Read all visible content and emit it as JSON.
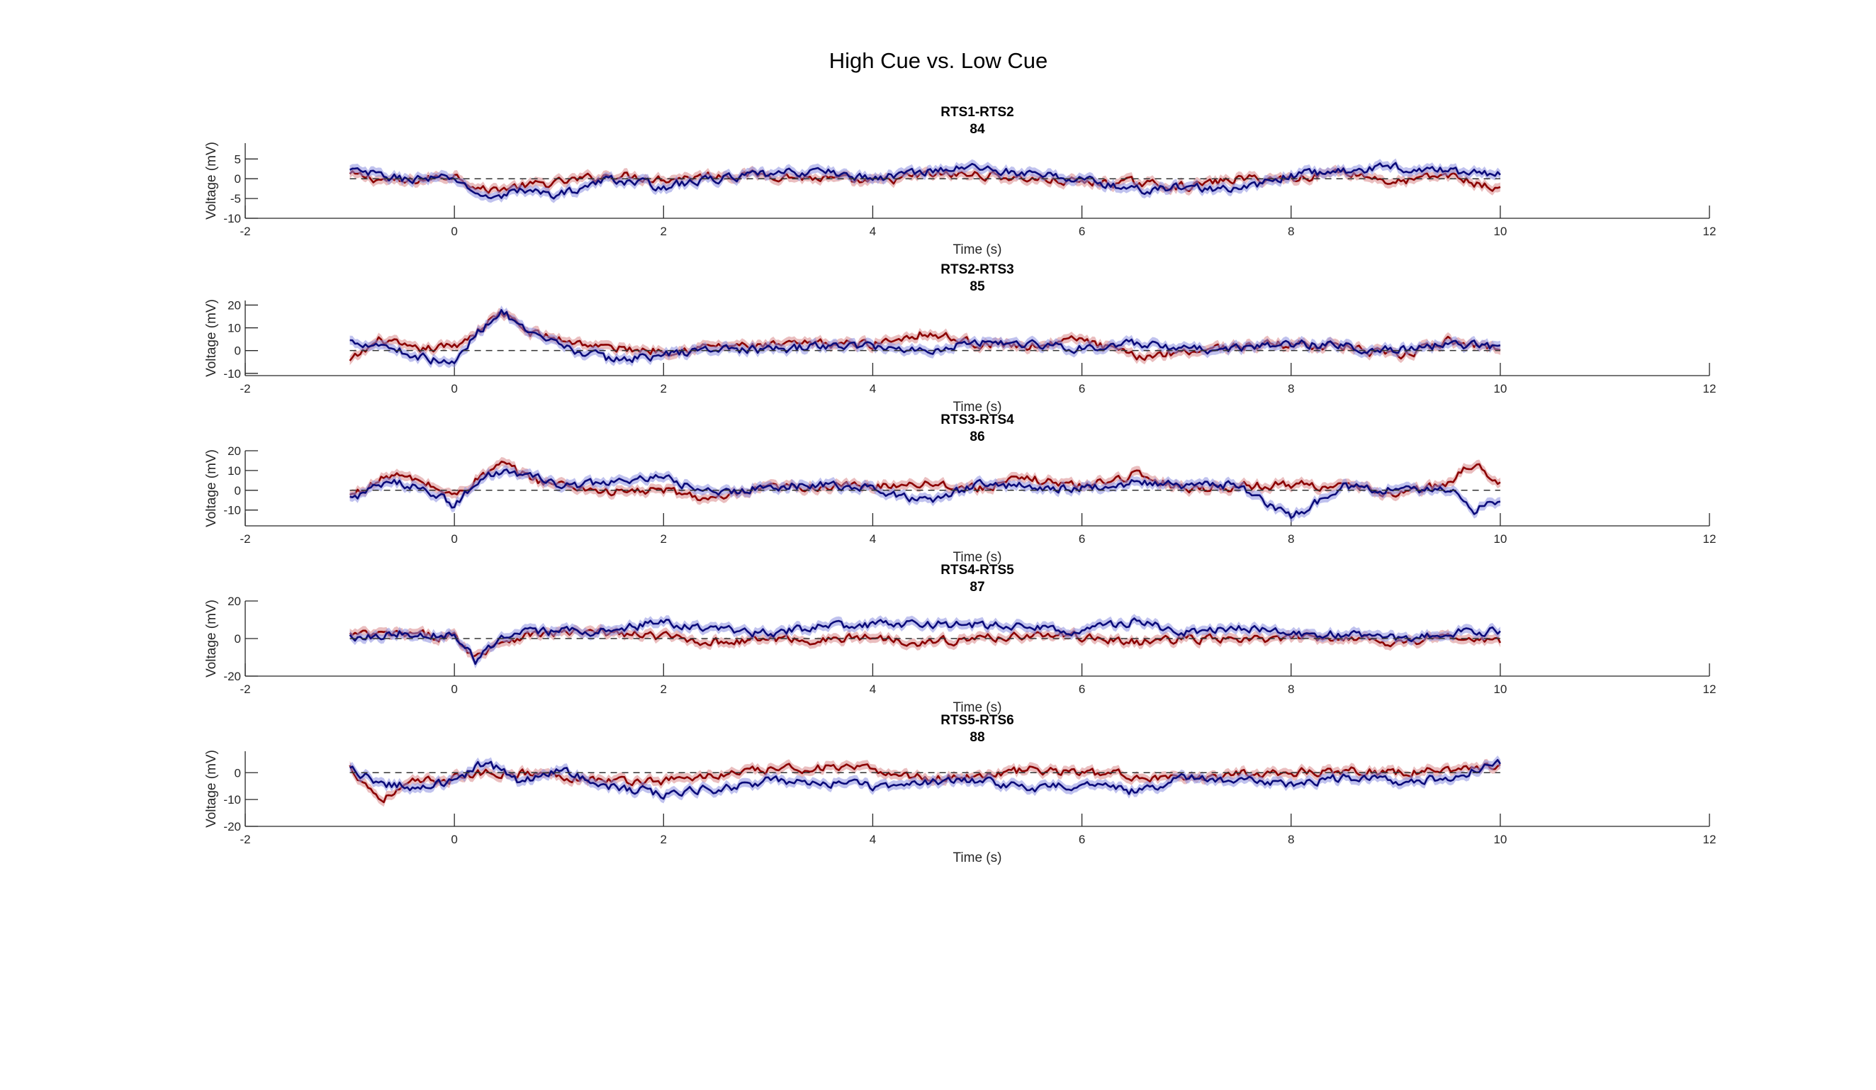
{
  "chart_data": {
    "title": "High Cue vs. Low Cue",
    "type": "line",
    "series_colors": {
      "high_cue": "#8b0000",
      "low_cue": "#0b0b7a",
      "high_cue_band": "#d9898a",
      "low_cue_band": "#8c8fe0"
    },
    "xlim": [
      -2,
      12
    ],
    "xticks": [
      "-2",
      "0",
      "2",
      "4",
      "6",
      "8",
      "10",
      "12"
    ],
    "xlabel": "Time (s)",
    "ylabel": "Voltage (mV)",
    "data_xrange": [
      -1,
      10
    ],
    "reference_line": {
      "y": 0,
      "style": "dashed",
      "x": [
        -1,
        10
      ]
    },
    "panels": [
      {
        "title": "RTS1-RTS2",
        "subtitle": "84",
        "ylim": [
          -10,
          9
        ],
        "yticks": [
          -10,
          -5,
          0,
          5
        ],
        "ytick_labels": [
          "-10",
          "-5",
          "0",
          "5"
        ],
        "red": {
          "x": [
            -1,
            -0.5,
            0,
            0.3,
            0.6,
            1,
            1.5,
            2,
            2.5,
            3,
            3.5,
            4,
            4.5,
            5,
            5.5,
            6,
            6.5,
            7,
            7.5,
            8,
            8.5,
            9,
            9.5,
            10
          ],
          "y": [
            1,
            -1,
            1,
            -3,
            -2,
            -1,
            1,
            0,
            1,
            1,
            0,
            -1,
            1,
            1,
            0,
            -1,
            -1,
            -2,
            0,
            0,
            2,
            -1,
            1,
            -3
          ]
        },
        "blue": {
          "x": [
            -1,
            -0.5,
            0,
            0.3,
            0.6,
            1,
            1.5,
            2,
            2.5,
            3,
            3.5,
            4,
            4.5,
            5,
            5.5,
            6,
            6.5,
            7,
            7.5,
            8,
            8.5,
            9,
            9.5,
            10
          ],
          "y": [
            2,
            0,
            0,
            -5,
            -3,
            -4,
            0,
            -2,
            0,
            1,
            2,
            0,
            2,
            3,
            1,
            0,
            -3,
            -2,
            -3,
            1,
            2,
            3,
            2,
            1
          ]
        }
      },
      {
        "title": "RTS2-RTS3",
        "subtitle": "85",
        "ylim": [
          -11,
          22
        ],
        "yticks": [
          -10,
          0,
          10,
          20
        ],
        "ytick_labels": [
          "-10",
          "0",
          "10",
          "20"
        ],
        "red": {
          "x": [
            -1,
            -0.7,
            -0.4,
            0,
            0.2,
            0.45,
            0.7,
            1,
            1.5,
            2,
            2.5,
            3,
            3.5,
            4,
            4.5,
            5,
            5.5,
            6,
            6.5,
            7,
            7.5,
            8,
            8.5,
            9,
            9.5,
            10
          ],
          "y": [
            -5,
            5,
            0,
            2,
            8,
            17,
            8,
            5,
            1,
            0,
            2,
            2,
            3,
            3,
            8,
            3,
            2,
            5,
            -3,
            0,
            2,
            3,
            2,
            -3,
            4,
            1
          ]
        },
        "blue": {
          "x": [
            -1,
            -0.7,
            -0.4,
            0,
            0.2,
            0.45,
            0.7,
            1,
            1.5,
            2,
            2.5,
            3,
            3.5,
            4,
            4.5,
            5,
            5.5,
            6,
            6.5,
            7,
            7.5,
            8,
            8.5,
            9,
            9.5,
            10
          ],
          "y": [
            4,
            3,
            -2,
            -6,
            7,
            18,
            7,
            2,
            -4,
            -2,
            1,
            0,
            2,
            2,
            0,
            4,
            3,
            1,
            3,
            0,
            1,
            3,
            2,
            0,
            3,
            1
          ]
        }
      },
      {
        "title": "RTS3-RTS4",
        "subtitle": "86",
        "ylim": [
          -18,
          20
        ],
        "yticks": [
          -10,
          0,
          10,
          20
        ],
        "ytick_labels": [
          "-10",
          "0",
          "10",
          "20"
        ],
        "red": {
          "x": [
            -1,
            -0.6,
            -0.3,
            0,
            0.2,
            0.45,
            0.8,
            1,
            1.5,
            2,
            2.5,
            3,
            3.5,
            4,
            4.5,
            5,
            5.5,
            6,
            6.5,
            7,
            7.5,
            8,
            8.5,
            9,
            9.5,
            9.75,
            10
          ],
          "y": [
            -3,
            8,
            4,
            -3,
            5,
            13,
            5,
            3,
            -1,
            0,
            -5,
            1,
            2,
            2,
            4,
            1,
            6,
            2,
            8,
            1,
            2,
            3,
            2,
            -2,
            3,
            14,
            4
          ]
        },
        "blue": {
          "x": [
            -1,
            -0.6,
            -0.3,
            0,
            0.2,
            0.45,
            0.8,
            1,
            1.5,
            2,
            2.5,
            3,
            3.5,
            4,
            4.5,
            5,
            5.5,
            6,
            6.5,
            7,
            7.5,
            8,
            8.5,
            9,
            9.5,
            9.75,
            10
          ],
          "y": [
            -4,
            4,
            2,
            -8,
            4,
            10,
            6,
            2,
            4,
            6,
            -2,
            2,
            3,
            1,
            -6,
            3,
            2,
            1,
            4,
            2,
            3,
            -14,
            2,
            0,
            1,
            -10,
            -4
          ]
        }
      },
      {
        "title": "RTS4-RTS5",
        "subtitle": "87",
        "ylim": [
          -20,
          20
        ],
        "yticks": [
          -20,
          0,
          20
        ],
        "ytick_labels": [
          "-20",
          "0",
          "20"
        ],
        "red": {
          "x": [
            -1,
            -0.5,
            0,
            0.2,
            0.4,
            0.7,
            1,
            1.5,
            2,
            2.5,
            3,
            3.5,
            4,
            4.5,
            5,
            5.5,
            6,
            6.5,
            7,
            7.5,
            8,
            8.5,
            9,
            9.5,
            10
          ],
          "y": [
            2,
            2,
            1,
            -10,
            -2,
            2,
            3,
            3,
            1,
            -2,
            0,
            -1,
            1,
            -2,
            0,
            2,
            1,
            -2,
            0,
            -1,
            0,
            1,
            -2,
            1,
            -2
          ]
        },
        "blue": {
          "x": [
            -1,
            -0.5,
            0,
            0.2,
            0.4,
            0.7,
            1,
            1.5,
            2,
            2.5,
            3,
            3.5,
            4,
            4.5,
            5,
            5.5,
            6,
            6.5,
            7,
            7.5,
            8,
            8.5,
            9,
            9.5,
            10
          ],
          "y": [
            1,
            3,
            2,
            -12,
            -1,
            3,
            4,
            4,
            9,
            4,
            3,
            6,
            7,
            8,
            7,
            6,
            4,
            9,
            3,
            5,
            3,
            2,
            0,
            3,
            4
          ]
        }
      },
      {
        "title": "RTS5-RTS6",
        "subtitle": "88",
        "ylim": [
          -20,
          8
        ],
        "yticks": [
          -20,
          -10,
          0
        ],
        "ytick_labels": [
          "-20",
          "-10",
          "0"
        ],
        "red": {
          "x": [
            -1,
            -0.7,
            -0.4,
            0,
            0.3,
            0.6,
            1,
            1.5,
            2,
            2.5,
            3,
            3.5,
            4,
            4.5,
            5,
            5.5,
            6,
            6.5,
            7,
            7.5,
            8,
            8.5,
            9,
            9.5,
            10
          ],
          "y": [
            2,
            -10,
            -4,
            -2,
            0,
            0,
            -1,
            -3,
            -3,
            -1,
            1,
            2,
            1,
            -2,
            -1,
            1,
            0,
            -1,
            -3,
            0,
            0,
            1,
            0,
            1,
            3
          ]
        },
        "blue": {
          "x": [
            -1,
            -0.7,
            -0.4,
            0,
            0.3,
            0.6,
            1,
            1.5,
            2,
            2.5,
            3,
            3.5,
            4,
            4.5,
            5,
            5.5,
            6,
            6.5,
            7,
            7.5,
            8,
            8.5,
            9,
            9.5,
            10
          ],
          "y": [
            1,
            -4,
            -5,
            -3,
            4,
            -3,
            1,
            -5,
            -8,
            -6,
            -3,
            -4,
            -5,
            -4,
            -3,
            -6,
            -4,
            -7,
            -2,
            -3,
            -4,
            -2,
            -3,
            -2,
            4
          ]
        }
      }
    ]
  }
}
